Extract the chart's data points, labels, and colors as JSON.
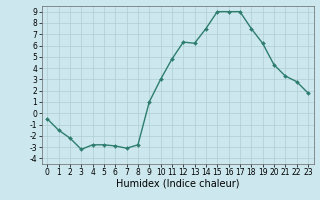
{
  "x": [
    0,
    1,
    2,
    3,
    4,
    5,
    6,
    7,
    8,
    9,
    10,
    11,
    12,
    13,
    14,
    15,
    16,
    17,
    18,
    19,
    20,
    21,
    22,
    23
  ],
  "y": [
    -0.5,
    -1.5,
    -2.2,
    -3.2,
    -2.8,
    -2.8,
    -2.9,
    -3.1,
    -2.8,
    1.0,
    3.0,
    4.8,
    6.3,
    6.2,
    7.5,
    9.0,
    9.0,
    9.0,
    7.5,
    6.2,
    4.3,
    3.3,
    2.8,
    1.8
  ],
  "line_color": "#2e7d6e",
  "marker": "D",
  "marker_size": 2,
  "bg_color": "#cce8ee",
  "grid_color": "#b0cdd4",
  "xlabel": "Humidex (Indice chaleur)",
  "xlim": [
    -0.5,
    23.5
  ],
  "ylim": [
    -4.5,
    9.5
  ],
  "yticks": [
    -4,
    -3,
    -2,
    -1,
    0,
    1,
    2,
    3,
    4,
    5,
    6,
    7,
    8,
    9
  ],
  "xticks": [
    0,
    1,
    2,
    3,
    4,
    5,
    6,
    7,
    8,
    9,
    10,
    11,
    12,
    13,
    14,
    15,
    16,
    17,
    18,
    19,
    20,
    21,
    22,
    23
  ],
  "tick_fontsize": 5.5,
  "xlabel_fontsize": 7,
  "line_width": 1.0
}
